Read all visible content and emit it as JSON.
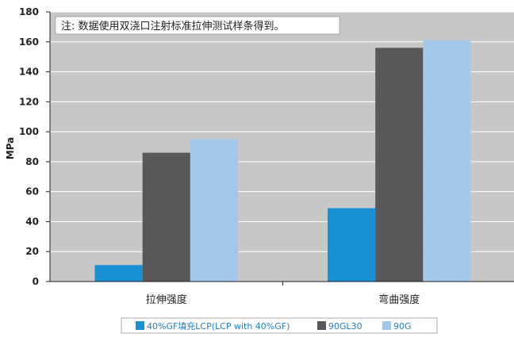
{
  "chart_data": {
    "type": "bar",
    "title": "",
    "note": "注: 数据使用双浇口注射标准拉伸测试样条得到。",
    "xlabel": "",
    "ylabel": "MPa",
    "ylim": [
      0,
      180
    ],
    "yticks": [
      0,
      20,
      40,
      60,
      80,
      100,
      120,
      140,
      160,
      180
    ],
    "categories": [
      "拉伸强度",
      "弯曲强度"
    ],
    "series": [
      {
        "name": "40%GF填充LCP(LCP with 40%GF)",
        "color": "#1a8fd3",
        "values": [
          11,
          49
        ]
      },
      {
        "name": "90GL30",
        "color": "#58585a",
        "values": [
          86,
          156
        ]
      },
      {
        "name": "90G",
        "color": "#a3c7e8",
        "values": [
          95,
          161
        ]
      }
    ],
    "grid": true,
    "legend_position": "bottom"
  }
}
